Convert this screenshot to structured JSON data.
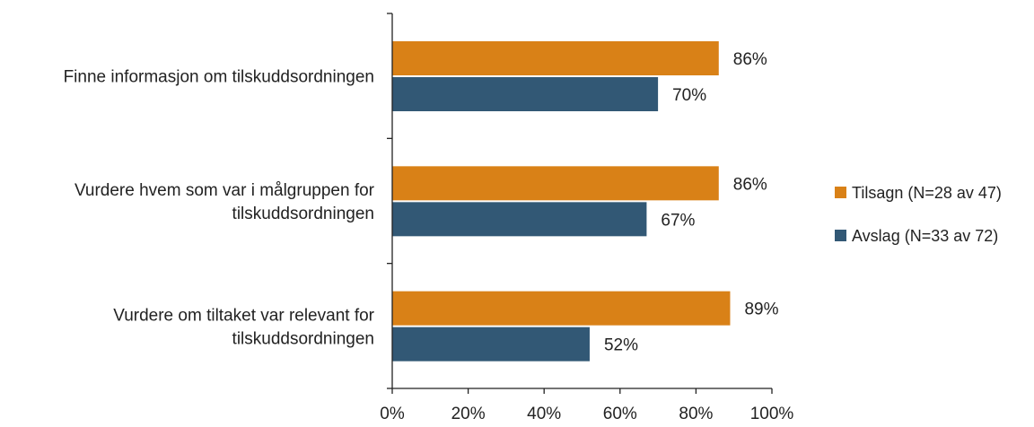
{
  "chart_data": {
    "type": "bar",
    "orientation": "horizontal",
    "title": "",
    "xlabel": "",
    "ylabel": "",
    "xlim": [
      0,
      100
    ],
    "x_ticks": [
      "0%",
      "20%",
      "40%",
      "60%",
      "80%",
      "100%"
    ],
    "x_tick_values": [
      0,
      20,
      40,
      60,
      80,
      100
    ],
    "grid": false,
    "legend_position": "right",
    "categories": [
      [
        "Finne informasjon om tilskuddsordningen"
      ],
      [
        "Vurdere hvem som var i målgruppen for",
        "tilskuddsordningen"
      ],
      [
        "Vurdere om tiltaket var relevant for",
        "tilskuddsordningen"
      ]
    ],
    "series": [
      {
        "name": "Tilsagn (N=28 av 47)",
        "color": "#D98117",
        "values": [
          86,
          86,
          89
        ],
        "labels": [
          "86%",
          "86%",
          "89%"
        ]
      },
      {
        "name": "Avslag (N=33 av 72)",
        "color": "#325875",
        "values": [
          70,
          67,
          52
        ],
        "labels": [
          "70%",
          "67%",
          "52%"
        ]
      }
    ]
  }
}
